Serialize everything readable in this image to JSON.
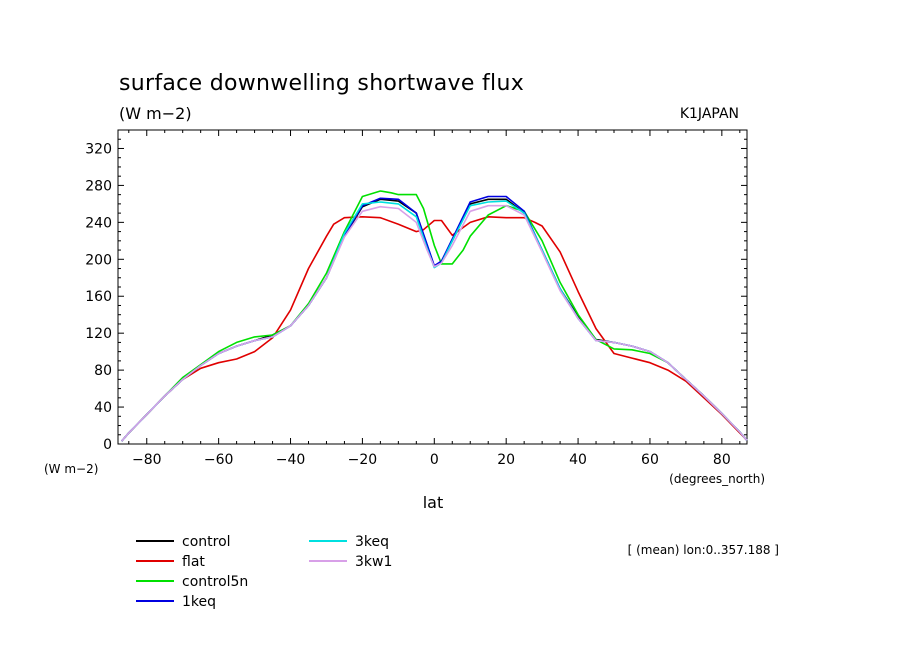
{
  "chart_data": {
    "type": "line",
    "title": "surface downwelling shortwave flux",
    "units": "(W m−2)",
    "source_label": "K1JAPAN",
    "ylabel": "(W m−2)",
    "xlabel": "lat",
    "x_units": "(degrees_north)",
    "note": "[ (mean) lon:0..357.188 ]",
    "xlim": [
      -88,
      87
    ],
    "ylim": [
      0,
      340
    ],
    "xticks": [
      -80,
      -60,
      -40,
      -20,
      0,
      20,
      40,
      60,
      80
    ],
    "yticks": [
      0,
      40,
      80,
      120,
      160,
      200,
      240,
      280,
      320
    ],
    "grid": false,
    "legend_position": "bottom-left",
    "series": [
      {
        "name": "control",
        "color": "#000000",
        "x": [
          -87,
          -85,
          -80,
          -75,
          -70,
          -65,
          -60,
          -55,
          -50,
          -45,
          -40,
          -35,
          -30,
          -25,
          -20,
          -15,
          -10,
          -5,
          -2,
          0,
          2,
          5,
          10,
          15,
          20,
          25,
          30,
          35,
          40,
          45,
          50,
          55,
          60,
          65,
          70,
          75,
          80,
          85,
          87
        ],
        "y": [
          3,
          12,
          32,
          52,
          70,
          85,
          98,
          106,
          112,
          118,
          128,
          150,
          180,
          225,
          257,
          265,
          263,
          250,
          215,
          192,
          198,
          220,
          260,
          265,
          265,
          250,
          210,
          168,
          138,
          113,
          110,
          106,
          100,
          88,
          70,
          52,
          33,
          13,
          4
        ]
      },
      {
        "name": "flat",
        "color": "#e00000",
        "x": [
          -87,
          -85,
          -80,
          -75,
          -70,
          -65,
          -60,
          -55,
          -50,
          -45,
          -40,
          -35,
          -30,
          -28,
          -25,
          -20,
          -15,
          -10,
          -5,
          -3,
          0,
          2,
          5,
          10,
          15,
          20,
          25,
          28,
          30,
          35,
          40,
          45,
          50,
          55,
          60,
          65,
          70,
          75,
          80,
          85,
          87
        ],
        "y": [
          3,
          12,
          32,
          52,
          70,
          82,
          88,
          92,
          100,
          115,
          145,
          190,
          225,
          238,
          245,
          246,
          245,
          238,
          230,
          232,
          242,
          242,
          226,
          240,
          246,
          245,
          245,
          240,
          236,
          208,
          165,
          125,
          98,
          93,
          88,
          80,
          68,
          50,
          32,
          12,
          4
        ]
      },
      {
        "name": "control5n",
        "color": "#00e000",
        "x": [
          -87,
          -85,
          -80,
          -75,
          -70,
          -65,
          -60,
          -55,
          -50,
          -45,
          -40,
          -35,
          -30,
          -25,
          -20,
          -15,
          -12,
          -10,
          -5,
          -3,
          0,
          2,
          5,
          8,
          10,
          15,
          20,
          25,
          30,
          35,
          40,
          45,
          50,
          55,
          60,
          65,
          70,
          75,
          80,
          85,
          87
        ],
        "y": [
          3,
          12,
          32,
          52,
          72,
          86,
          100,
          110,
          116,
          118,
          128,
          152,
          185,
          230,
          268,
          274,
          272,
          270,
          270,
          255,
          215,
          195,
          195,
          210,
          225,
          248,
          258,
          252,
          220,
          175,
          140,
          113,
          103,
          102,
          98,
          88,
          70,
          52,
          33,
          13,
          4
        ]
      },
      {
        "name": "1keq",
        "color": "#0000e0",
        "x": [
          -87,
          -85,
          -80,
          -75,
          -70,
          -65,
          -60,
          -55,
          -50,
          -45,
          -40,
          -35,
          -30,
          -25,
          -20,
          -15,
          -10,
          -5,
          -2,
          0,
          2,
          5,
          10,
          15,
          20,
          25,
          30,
          35,
          40,
          45,
          50,
          55,
          60,
          65,
          70,
          75,
          80,
          85,
          87
        ],
        "y": [
          3,
          12,
          32,
          52,
          70,
          85,
          98,
          106,
          112,
          116,
          128,
          150,
          180,
          226,
          258,
          266,
          265,
          250,
          216,
          193,
          198,
          222,
          262,
          268,
          268,
          252,
          210,
          168,
          136,
          112,
          110,
          106,
          100,
          88,
          70,
          52,
          33,
          13,
          4
        ]
      },
      {
        "name": "3keq",
        "color": "#00e0e0",
        "x": [
          -87,
          -85,
          -80,
          -75,
          -70,
          -65,
          -60,
          -55,
          -50,
          -45,
          -40,
          -35,
          -30,
          -25,
          -20,
          -15,
          -10,
          -5,
          -2,
          0,
          2,
          5,
          10,
          15,
          20,
          25,
          30,
          35,
          40,
          45,
          50,
          55,
          60,
          65,
          70,
          75,
          80,
          85,
          87
        ],
        "y": [
          3,
          12,
          32,
          52,
          70,
          85,
          98,
          106,
          112,
          116,
          128,
          150,
          180,
          228,
          260,
          262,
          260,
          246,
          212,
          191,
          196,
          220,
          258,
          262,
          263,
          250,
          210,
          168,
          136,
          112,
          110,
          106,
          100,
          88,
          70,
          52,
          33,
          13,
          4
        ]
      },
      {
        "name": "3kw1",
        "color": "#d8a0e8",
        "x": [
          -87,
          -85,
          -80,
          -75,
          -70,
          -65,
          -60,
          -55,
          -50,
          -45,
          -40,
          -35,
          -30,
          -25,
          -20,
          -15,
          -10,
          -5,
          -2,
          0,
          2,
          5,
          10,
          15,
          20,
          25,
          30,
          35,
          40,
          45,
          50,
          55,
          60,
          65,
          70,
          75,
          80,
          85,
          87
        ],
        "y": [
          3,
          12,
          32,
          52,
          70,
          85,
          98,
          106,
          112,
          116,
          128,
          150,
          180,
          224,
          252,
          257,
          255,
          240,
          210,
          192,
          196,
          215,
          252,
          258,
          258,
          248,
          208,
          166,
          136,
          112,
          110,
          106,
          100,
          88,
          70,
          52,
          33,
          13,
          4
        ]
      }
    ]
  }
}
